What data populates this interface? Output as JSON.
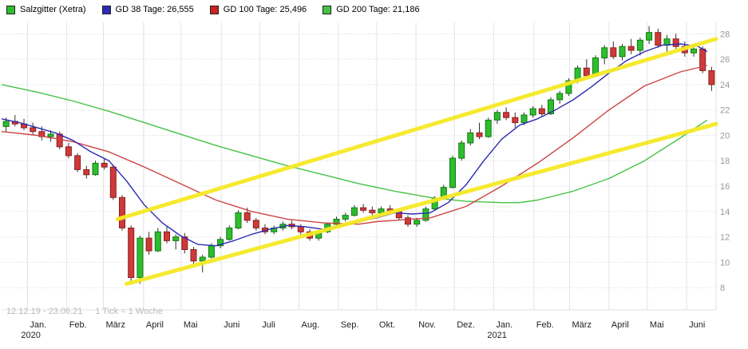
{
  "legend": {
    "items": [
      {
        "label": "Salzgitter (Xetra)",
        "color": "#2EBD2E"
      },
      {
        "label": "GD 38 Tage: 26,555",
        "color": "#2B2BB4"
      },
      {
        "label": "GD 100 Tage: 25,496",
        "color": "#CC2222"
      },
      {
        "label": "GD 200 Tage: 21,186",
        "color": "#46C246"
      }
    ]
  },
  "footer": {
    "date_range": "12.12.19 - 23.06.21",
    "tick_info": "1 Tick = 1 Woche"
  },
  "chart_data": {
    "type": "candlestick",
    "title": "Salzgitter (Xetra) weekly candlestick chart with GD38/GD100/GD200 moving averages and yellow trend channel",
    "x_unit": "week",
    "x_weeks_total": 80,
    "yaxis_position": "right",
    "ylim": [
      6.25,
      28.9
    ],
    "yticks": [
      8,
      10,
      12,
      14,
      16,
      18,
      20,
      22,
      24,
      26,
      28
    ],
    "months": [
      {
        "label": "Jan.",
        "week": 2.9
      },
      {
        "label": "Feb.",
        "week": 7.3
      },
      {
        "label": "März",
        "week": 11.4
      },
      {
        "label": "April",
        "week": 15.9
      },
      {
        "label": "Mai",
        "week": 20.1
      },
      {
        "label": "Juni",
        "week": 24.6
      },
      {
        "label": "Juli",
        "week": 28.9
      },
      {
        "label": "Aug.",
        "week": 33.3
      },
      {
        "label": "Sep.",
        "week": 37.7
      },
      {
        "label": "Okt.",
        "week": 42.0
      },
      {
        "label": "Nov.",
        "week": 46.4
      },
      {
        "label": "Dez.",
        "week": 50.7
      },
      {
        "label": "Jan.",
        "week": 55.1
      },
      {
        "label": "Feb.",
        "week": 59.6
      },
      {
        "label": "März",
        "week": 63.6
      },
      {
        "label": "April",
        "week": 68.0
      },
      {
        "label": "Mai",
        "week": 72.3
      },
      {
        "label": "Juni",
        "week": 76.7
      }
    ],
    "years": [
      {
        "label": "2020",
        "week": 2.9
      },
      {
        "label": "2021",
        "week": 55.1
      }
    ],
    "candles_ohlc": [
      [
        20.7,
        21.4,
        20.3,
        21.1
      ],
      [
        21.1,
        21.6,
        20.7,
        20.9
      ],
      [
        20.9,
        21.3,
        20.4,
        20.6
      ],
      [
        20.6,
        21.0,
        20.0,
        20.3
      ],
      [
        20.3,
        20.7,
        19.6,
        19.9
      ],
      [
        19.9,
        20.4,
        19.5,
        20.1
      ],
      [
        20.1,
        20.3,
        18.9,
        19.1
      ],
      [
        19.1,
        19.4,
        18.2,
        18.4
      ],
      [
        18.4,
        18.6,
        17.1,
        17.3
      ],
      [
        17.3,
        17.6,
        16.6,
        16.9
      ],
      [
        16.9,
        18.0,
        16.8,
        17.8
      ],
      [
        17.8,
        18.2,
        17.3,
        17.5
      ],
      [
        17.5,
        17.7,
        14.9,
        15.1
      ],
      [
        15.1,
        15.3,
        12.5,
        12.7
      ],
      [
        12.7,
        12.9,
        8.5,
        8.8
      ],
      [
        8.8,
        12.1,
        8.3,
        11.9
      ],
      [
        11.9,
        12.4,
        10.6,
        10.9
      ],
      [
        10.9,
        12.7,
        10.8,
        12.4
      ],
      [
        12.4,
        12.8,
        11.5,
        11.7
      ],
      [
        11.7,
        12.2,
        11.0,
        12.0
      ],
      [
        12.0,
        12.3,
        10.7,
        11.0
      ],
      [
        11.0,
        11.2,
        9.8,
        10.1
      ],
      [
        10.1,
        10.6,
        9.2,
        10.4
      ],
      [
        10.4,
        11.5,
        10.3,
        11.3
      ],
      [
        11.3,
        12.0,
        11.1,
        11.8
      ],
      [
        11.8,
        12.9,
        11.7,
        12.7
      ],
      [
        12.7,
        14.1,
        12.6,
        13.9
      ],
      [
        13.9,
        14.3,
        13.1,
        13.3
      ],
      [
        13.3,
        13.5,
        12.5,
        12.7
      ],
      [
        12.7,
        13.0,
        12.2,
        12.4
      ],
      [
        12.4,
        12.9,
        12.2,
        12.7
      ],
      [
        12.7,
        13.2,
        12.5,
        13.0
      ],
      [
        13.0,
        13.3,
        12.6,
        12.8
      ],
      [
        12.8,
        13.0,
        12.2,
        12.4
      ],
      [
        12.4,
        12.6,
        11.7,
        11.9
      ],
      [
        11.9,
        12.5,
        11.7,
        12.4
      ],
      [
        12.4,
        13.1,
        12.3,
        13.0
      ],
      [
        13.0,
        13.6,
        12.9,
        13.4
      ],
      [
        13.4,
        13.9,
        13.2,
        13.7
      ],
      [
        13.7,
        14.5,
        13.6,
        14.3
      ],
      [
        14.3,
        14.6,
        13.9,
        14.1
      ],
      [
        14.1,
        14.4,
        13.7,
        13.9
      ],
      [
        13.9,
        14.4,
        13.8,
        14.2
      ],
      [
        14.2,
        14.5,
        13.9,
        14.0
      ],
      [
        14.0,
        14.2,
        13.3,
        13.5
      ],
      [
        13.5,
        13.7,
        12.8,
        13.0
      ],
      [
        13.0,
        13.5,
        12.8,
        13.3
      ],
      [
        13.3,
        14.4,
        13.2,
        14.2
      ],
      [
        14.2,
        15.2,
        14.1,
        15.0
      ],
      [
        15.0,
        16.1,
        14.9,
        15.9
      ],
      [
        15.9,
        18.4,
        15.8,
        18.2
      ],
      [
        18.2,
        19.6,
        18.0,
        19.4
      ],
      [
        19.4,
        20.5,
        19.2,
        20.2
      ],
      [
        20.2,
        21.0,
        19.7,
        19.9
      ],
      [
        19.9,
        21.4,
        19.8,
        21.2
      ],
      [
        21.2,
        22.0,
        20.9,
        21.8
      ],
      [
        21.8,
        22.2,
        21.2,
        21.4
      ],
      [
        21.4,
        21.8,
        20.6,
        21.0
      ],
      [
        21.0,
        21.8,
        20.8,
        21.6
      ],
      [
        21.6,
        22.3,
        21.4,
        22.1
      ],
      [
        22.1,
        22.4,
        21.5,
        21.7
      ],
      [
        21.7,
        23.0,
        21.6,
        22.8
      ],
      [
        22.8,
        23.5,
        22.5,
        23.3
      ],
      [
        23.3,
        24.5,
        23.1,
        24.3
      ],
      [
        24.3,
        25.5,
        24.1,
        25.3
      ],
      [
        25.3,
        26.0,
        24.5,
        24.7
      ],
      [
        24.7,
        26.3,
        24.6,
        26.1
      ],
      [
        26.1,
        27.1,
        25.6,
        26.9
      ],
      [
        26.9,
        27.4,
        26.0,
        26.2
      ],
      [
        26.2,
        27.2,
        25.9,
        27.0
      ],
      [
        27.0,
        27.6,
        26.4,
        26.7
      ],
      [
        26.7,
        27.7,
        26.3,
        27.5
      ],
      [
        27.5,
        28.6,
        27.2,
        28.1
      ],
      [
        28.1,
        28.4,
        26.9,
        27.1
      ],
      [
        27.1,
        27.9,
        26.6,
        27.6
      ],
      [
        27.6,
        28.0,
        26.8,
        27.0
      ],
      [
        27.0,
        27.4,
        26.2,
        26.5
      ],
      [
        26.5,
        27.2,
        26.2,
        26.8
      ],
      [
        26.8,
        27.0,
        24.9,
        25.1
      ],
      [
        25.1,
        25.4,
        23.5,
        24.0
      ]
    ],
    "series": [
      {
        "name": "GD 38 Tage",
        "name_id": "gd38-line",
        "current_value": "26,555",
        "color": "#2B2BB4",
        "points": [
          [
            0,
            21.3
          ],
          [
            2,
            21.0
          ],
          [
            4,
            20.6
          ],
          [
            6,
            20.2
          ],
          [
            8,
            19.6
          ],
          [
            10,
            18.7
          ],
          [
            12,
            18.0
          ],
          [
            14,
            16.4
          ],
          [
            16,
            14.5
          ],
          [
            18,
            13.1
          ],
          [
            20,
            12.1
          ],
          [
            22,
            11.4
          ],
          [
            24,
            11.3
          ],
          [
            26,
            11.7
          ],
          [
            28,
            12.2
          ],
          [
            30,
            12.6
          ],
          [
            32,
            12.9
          ],
          [
            34,
            12.8
          ],
          [
            36,
            12.6
          ],
          [
            38,
            12.9
          ],
          [
            40,
            13.2
          ],
          [
            42,
            13.5
          ],
          [
            44,
            13.9
          ],
          [
            46,
            13.8
          ],
          [
            48,
            13.9
          ],
          [
            50,
            14.7
          ],
          [
            52,
            16.1
          ],
          [
            54,
            18.0
          ],
          [
            56,
            19.7
          ],
          [
            58,
            20.8
          ],
          [
            60,
            21.3
          ],
          [
            62,
            22.0
          ],
          [
            64,
            22.8
          ],
          [
            66,
            23.8
          ],
          [
            68,
            24.9
          ],
          [
            70,
            25.9
          ],
          [
            72,
            26.6
          ],
          [
            74,
            27.1
          ],
          [
            76,
            27.2
          ],
          [
            78,
            27.0
          ],
          [
            79,
            26.6
          ]
        ]
      },
      {
        "name": "GD 100 Tage",
        "name_id": "gd100-line",
        "current_value": "25,496",
        "color": "#CC4444",
        "points": [
          [
            0,
            20.3
          ],
          [
            4,
            20.0
          ],
          [
            8,
            19.5
          ],
          [
            12,
            18.7
          ],
          [
            16,
            17.5
          ],
          [
            20,
            16.2
          ],
          [
            24,
            14.9
          ],
          [
            28,
            14.0
          ],
          [
            32,
            13.4
          ],
          [
            36,
            13.1
          ],
          [
            40,
            13.0
          ],
          [
            42,
            13.2
          ],
          [
            44,
            13.3
          ],
          [
            48,
            13.5
          ],
          [
            52,
            14.4
          ],
          [
            56,
            16.0
          ],
          [
            60,
            17.8
          ],
          [
            64,
            19.8
          ],
          [
            68,
            22.0
          ],
          [
            72,
            23.9
          ],
          [
            76,
            25.0
          ],
          [
            79,
            25.5
          ]
        ]
      },
      {
        "name": "GD 200 Tage",
        "name_id": "gd200-line",
        "current_value": "21,186",
        "color": "#46C246",
        "points": [
          [
            0,
            24.0
          ],
          [
            4,
            23.4
          ],
          [
            8,
            22.7
          ],
          [
            12,
            21.9
          ],
          [
            16,
            21.0
          ],
          [
            20,
            20.1
          ],
          [
            24,
            19.2
          ],
          [
            28,
            18.4
          ],
          [
            32,
            17.6
          ],
          [
            36,
            16.9
          ],
          [
            40,
            16.2
          ],
          [
            44,
            15.6
          ],
          [
            48,
            15.1
          ],
          [
            52,
            14.8
          ],
          [
            56,
            14.7
          ],
          [
            58,
            14.7
          ],
          [
            60,
            14.9
          ],
          [
            64,
            15.6
          ],
          [
            68,
            16.6
          ],
          [
            72,
            18.0
          ],
          [
            76,
            19.8
          ],
          [
            79,
            21.2
          ]
        ]
      }
    ],
    "trendlines": [
      {
        "name": "channel-lower-trendline",
        "color": "#F6E926",
        "from": [
          14,
          8.3
        ],
        "to": [
          80,
          20.9
        ]
      },
      {
        "name": "channel-upper-trendline",
        "color": "#F6E926",
        "from": [
          13,
          13.4
        ],
        "to": [
          80,
          27.6
        ]
      }
    ],
    "colors": {
      "up": "#2EBD2E",
      "up_border": "#117A11",
      "down": "#CE3939",
      "down_border": "#8E1E1E",
      "wick": "#333333",
      "grid_h": "#D9D9D9",
      "grid_v": "#E3E3E3",
      "axis_text": "#999999",
      "month_text": "#222222",
      "footer_text": "#B9B9B9"
    }
  }
}
